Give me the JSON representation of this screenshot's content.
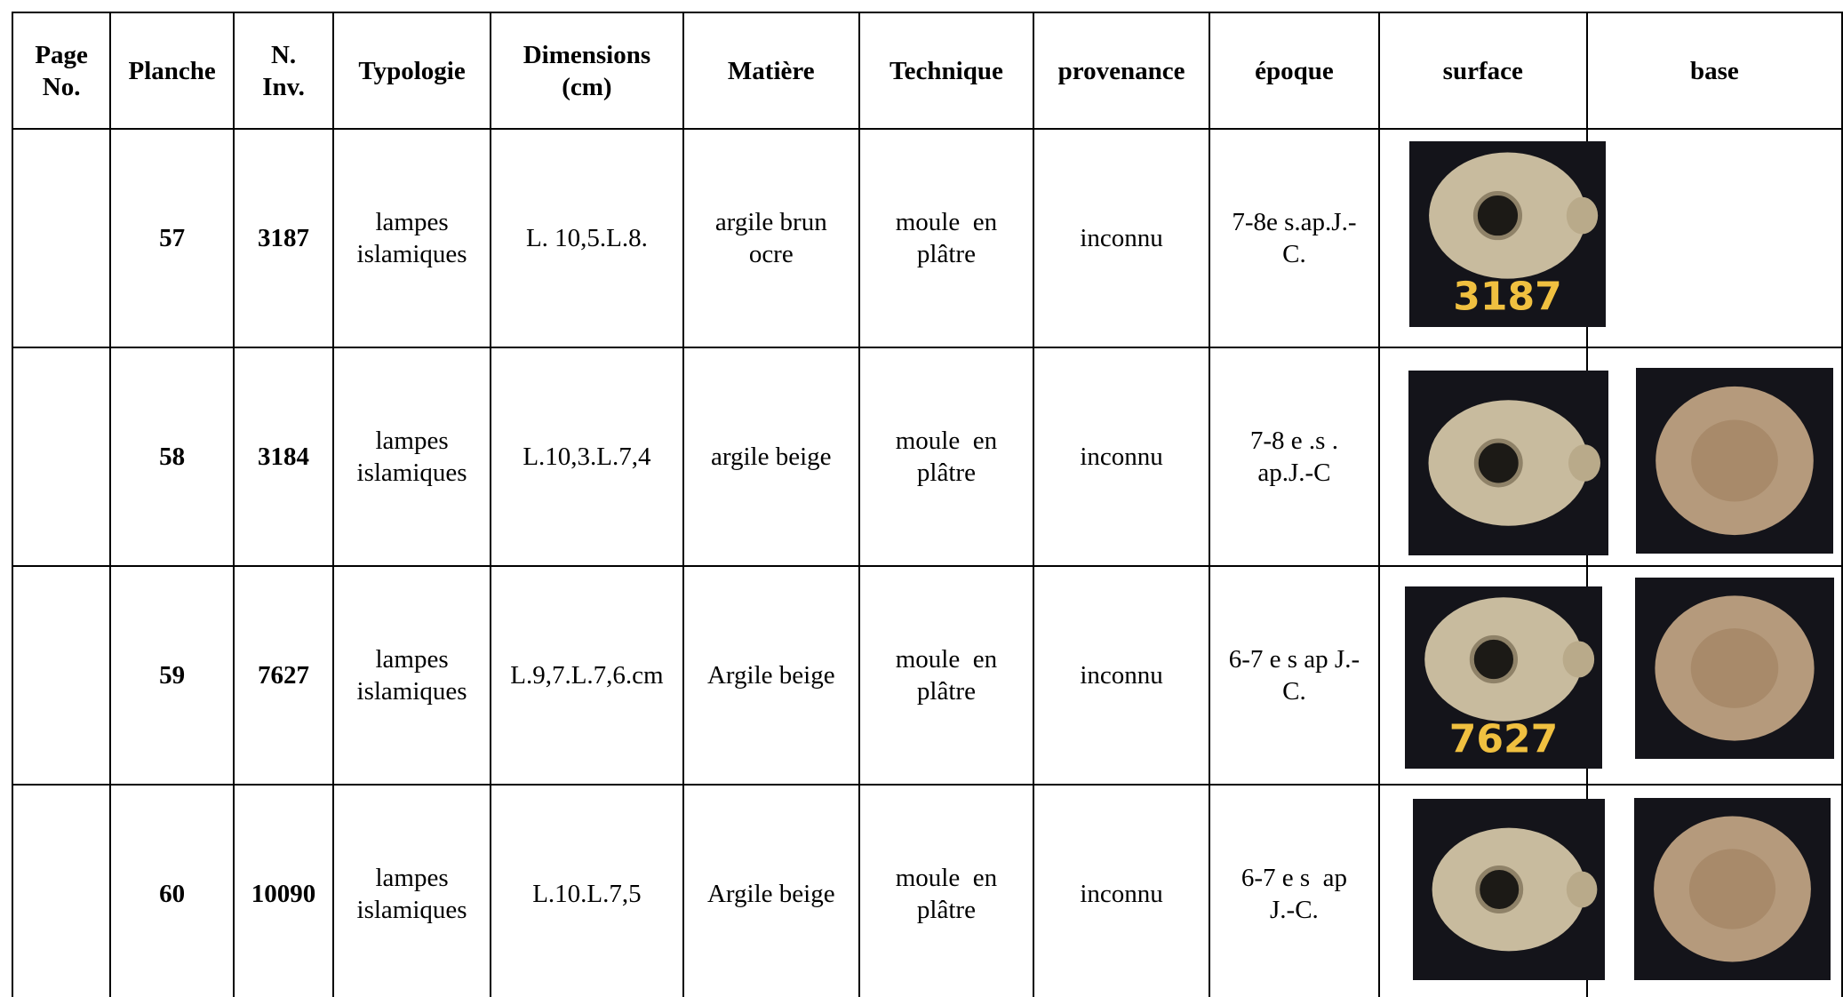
{
  "table": {
    "headers": [
      [
        "Page",
        "No."
      ],
      [
        "Planche"
      ],
      [
        "N.",
        "Inv."
      ],
      [
        "Typologie"
      ],
      [
        "Dimensions",
        "(cm)"
      ],
      [
        "Matière"
      ],
      [
        "Technique"
      ],
      [
        "provenance"
      ],
      [
        "époque"
      ],
      [
        "surface"
      ],
      [
        "base"
      ]
    ],
    "rows": [
      {
        "cells": [
          [
            "57"
          ],
          [
            "3187"
          ],
          [
            "lampes",
            "islamiques"
          ],
          [
            "L. 10,5.L.8."
          ],
          [
            "argile brun",
            "ocre"
          ],
          [
            "moule  en",
            "plâtre"
          ],
          [
            "inconnu"
          ],
          [
            "7-8e s.ap.J.-",
            "C."
          ]
        ],
        "photo_label": "3187"
      },
      {
        "cells": [
          [
            "58"
          ],
          [
            "3184"
          ],
          [
            "lampes",
            "islamiques"
          ],
          [
            "L.10,3.L.7,4"
          ],
          [
            "argile beige"
          ],
          [
            "moule  en",
            "plâtre"
          ],
          [
            "inconnu"
          ],
          [
            "7-8 e .s .",
            "ap.J.-C"
          ]
        ]
      },
      {
        "cells": [
          [
            "59"
          ],
          [
            "7627"
          ],
          [
            "lampes",
            "islamiques"
          ],
          [
            "L.9,7.L.7,6.cm"
          ],
          [
            "Argile beige"
          ],
          [
            "moule  en",
            "plâtre"
          ],
          [
            "inconnu"
          ],
          [
            "6-7 e s ap J.-",
            "C."
          ]
        ],
        "photo_label": "7627"
      },
      {
        "cells": [
          [
            "60"
          ],
          [
            "10090"
          ],
          [
            "lampes",
            "islamiques"
          ],
          [
            "L.10.L.7,5"
          ],
          [
            "Argile beige"
          ],
          [
            "moule  en",
            "plâtre"
          ],
          [
            "inconnu"
          ],
          [
            "6-7 e s  ap",
            "J.-C."
          ]
        ]
      }
    ]
  }
}
